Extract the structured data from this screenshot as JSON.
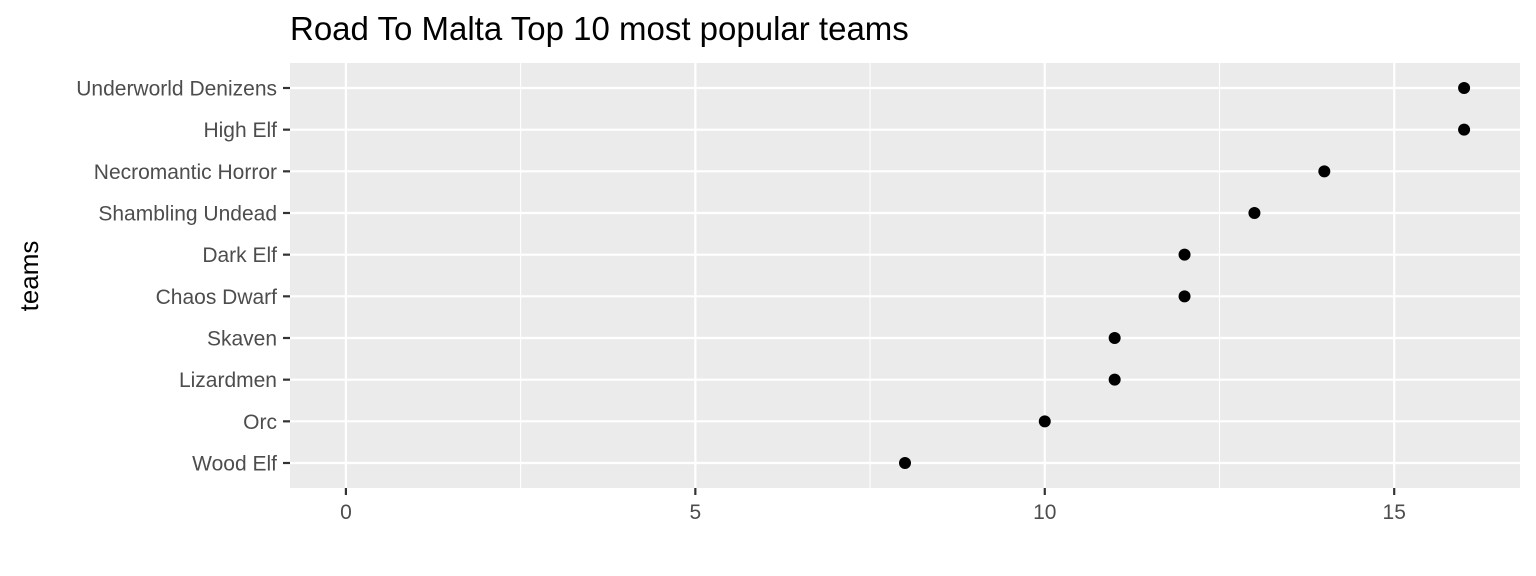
{
  "chart_data": {
    "type": "scatter",
    "title": "Road To Malta Top 10 most popular teams",
    "xlabel": "",
    "ylabel": "teams",
    "xlim": [
      -0.8,
      16.8
    ],
    "x_ticks": [
      0,
      5,
      10,
      15
    ],
    "x_tick_labels": [
      "0",
      "5",
      "10",
      "15"
    ],
    "grid": true,
    "categories": [
      "Underworld Denizens",
      "High Elf",
      "Necromantic Horror",
      "Shambling Undead",
      "Dark Elf",
      "Chaos Dwarf",
      "Skaven",
      "Lizardmen",
      "Orc",
      "Wood Elf"
    ],
    "values": [
      16,
      16,
      14,
      13,
      12,
      12,
      11,
      11,
      10,
      8
    ],
    "colors": {
      "panel": "#ebebeb",
      "grid": "#ffffff",
      "point": "#000000",
      "tick": "#333333",
      "tick_label": "#4d4d4d"
    }
  }
}
